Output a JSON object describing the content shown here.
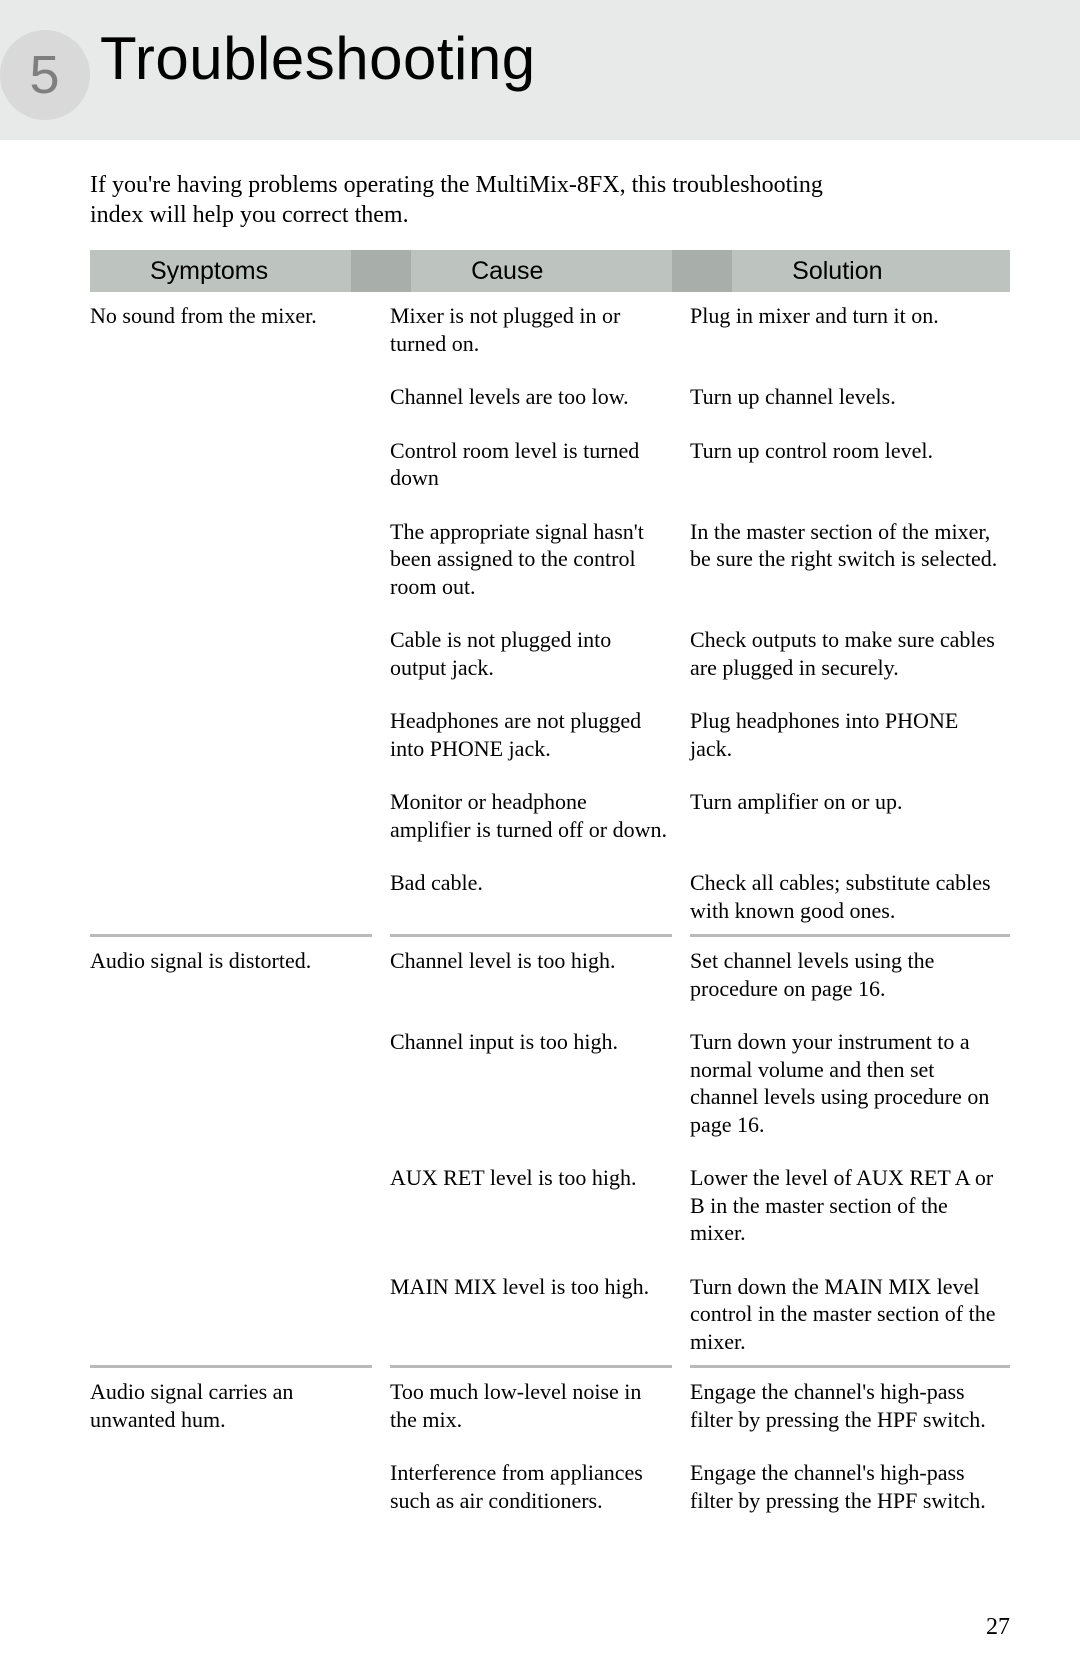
{
  "chapter": {
    "number": "5",
    "title": "Troubleshooting"
  },
  "intro": "If you're having problems operating the MultiMix-8FX, this troubleshooting index will help you correct them.",
  "columns": [
    "Symptoms",
    "Cause",
    "Solution"
  ],
  "groups": [
    {
      "symptom": "No sound from the mixer.",
      "pairs": [
        {
          "cause": "Mixer is not plugged in or turned on.",
          "solution": "Plug in mixer and turn it on."
        },
        {
          "cause": "Channel levels are too low.",
          "solution": "Turn up channel levels."
        },
        {
          "cause": "Control room level is turned down",
          "solution": "Turn up control room level."
        },
        {
          "cause": "The appropriate signal hasn't been assigned to the control room out.",
          "solution": "In the master section of the mixer, be sure the right switch is selected."
        },
        {
          "cause": "Cable is not plugged into output jack.",
          "solution": "Check outputs to make sure cables are plugged in securely."
        },
        {
          "cause": "Headphones are not plugged into PHONE jack.",
          "solution": "Plug headphones into PHONE jack."
        },
        {
          "cause": "Monitor or headphone amplifier is turned off or down.",
          "solution": "Turn amplifier on or up."
        },
        {
          "cause": "Bad cable.",
          "solution": "Check all cables; substitute cables with known good ones."
        }
      ]
    },
    {
      "symptom": "Audio signal is distorted.",
      "pairs": [
        {
          "cause": "Channel level is too high.",
          "solution": "Set channel levels using the procedure on page 16."
        },
        {
          "cause": "Channel input is too high.",
          "solution": "Turn down your instrument to a normal volume and then set channel levels using procedure on page 16."
        },
        {
          "cause": "AUX RET level is too high.",
          "solution": "Lower the level of AUX RET A or B in the master section of the mixer."
        },
        {
          "cause": "MAIN MIX level is too high.",
          "solution": "Turn down the MAIN MIX level control in the master section of the mixer."
        }
      ]
    },
    {
      "symptom": "Audio signal carries an unwanted hum.",
      "pairs": [
        {
          "cause": "Too much low-level noise in the mix.",
          "solution": "Engage the channel's high-pass filter by pressing the HPF switch."
        },
        {
          "cause": "Interference from appliances such as air conditioners.",
          "solution": "Engage the channel's high-pass filter by pressing the HPF switch."
        }
      ]
    }
  ],
  "page_number": "27",
  "style": {
    "header_bg": "#e8eae9",
    "circle_bg": "#d8d9d8",
    "circle_fg": "#7e7f7e",
    "col_header_bg": "#bdc4bf",
    "col_header_dark": "#a8aeaa",
    "rule_color": "#b9bab9",
    "body_font": "Georgia",
    "heading_font": "Helvetica Neue"
  }
}
